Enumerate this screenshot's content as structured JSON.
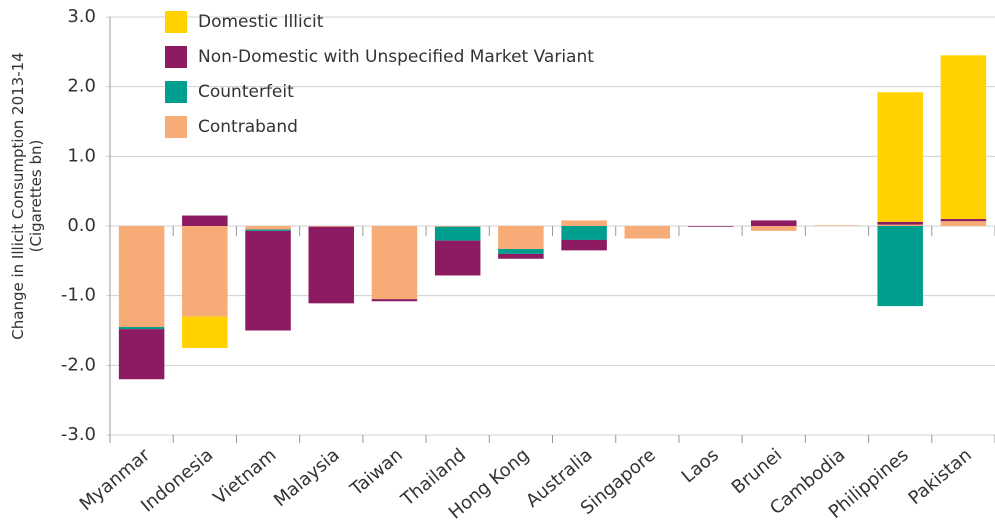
{
  "chart_data": {
    "type": "bar",
    "stacked": true,
    "y_label": "Change in Illicit Consumption 2013-14 (Cigarettes bn)",
    "categories": [
      "Myanmar",
      "Indonesia",
      "Vietnam",
      "Malaysia",
      "Taiwan",
      "Thailand",
      "Hong Kong",
      "Australia",
      "Singapore",
      "Laos",
      "Brunei",
      "Cambodia",
      "Philippines",
      "Pakistan"
    ],
    "series": [
      {
        "name": "Contraband",
        "color": "#f7ac78",
        "values": [
          -1.45,
          -1.3,
          -0.05,
          -0.01,
          -1.05,
          -0.01,
          -0.33,
          0.08,
          -0.18,
          0,
          -0.07,
          0.01,
          0.02,
          0.07
        ]
      },
      {
        "name": "Counterfeit",
        "color": "#009e8e",
        "values": [
          -0.03,
          0,
          -0.02,
          0,
          0,
          -0.2,
          -0.07,
          -0.2,
          0,
          0,
          0,
          0,
          -1.15,
          0
        ]
      },
      {
        "name": "Non-Domestic with Unspecified Market Variant",
        "color": "#8c1b62",
        "values": [
          -0.72,
          0.15,
          -1.43,
          -1.1,
          -0.03,
          -0.5,
          -0.07,
          -0.15,
          0,
          -0.01,
          0.08,
          0,
          0.04,
          0.03
        ]
      },
      {
        "name": "Domestic Illicit",
        "color": "#ffd200",
        "values": [
          0,
          -0.45,
          0,
          0,
          0,
          0,
          0,
          0,
          0,
          0,
          0,
          0,
          1.86,
          2.35
        ]
      }
    ],
    "ylim": [
      -3,
      3
    ],
    "yticks": [
      {
        "value": -3,
        "label": "-3.0"
      },
      {
        "value": -2,
        "label": "-2.0"
      },
      {
        "value": -1,
        "label": "-1.0"
      },
      {
        "value": 0,
        "label": "0.0"
      },
      {
        "value": 1,
        "label": "1.0"
      },
      {
        "value": 2,
        "label": "2.0"
      },
      {
        "value": 3,
        "label": "3.0"
      }
    ],
    "grid": true
  }
}
